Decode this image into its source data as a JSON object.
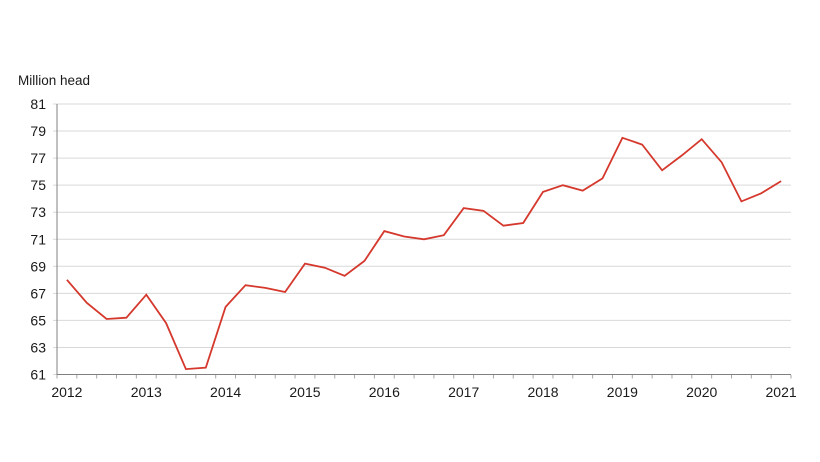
{
  "chart_data": {
    "type": "line",
    "title": "",
    "unit_label": "Million head",
    "xlabel": "",
    "ylabel": "Million head",
    "ylim": [
      61,
      81
    ],
    "y_ticks": [
      61,
      63,
      65,
      67,
      69,
      71,
      73,
      75,
      77,
      79,
      81
    ],
    "x_tick_labels": [
      "2012",
      "2013",
      "2014",
      "2015",
      "2016",
      "2017",
      "2018",
      "2019",
      "2020",
      "2021"
    ],
    "grid": "horizontal",
    "legend": "none",
    "series": [
      {
        "name": "Million head",
        "color": "#d5382c",
        "x": [
          "2012 Q1",
          "2012 Q2",
          "2012 Q3",
          "2012 Q4",
          "2013 Q1",
          "2013 Q2",
          "2013 Q3",
          "2013 Q4",
          "2014 Q1",
          "2014 Q2",
          "2014 Q3",
          "2014 Q4",
          "2015 Q1",
          "2015 Q2",
          "2015 Q3",
          "2015 Q4",
          "2016 Q1",
          "2016 Q2",
          "2016 Q3",
          "2016 Q4",
          "2017 Q1",
          "2017 Q2",
          "2017 Q3",
          "2017 Q4",
          "2018 Q1",
          "2018 Q2",
          "2018 Q3",
          "2018 Q4",
          "2019 Q1",
          "2019 Q2",
          "2019 Q3",
          "2019 Q4",
          "2020 Q1",
          "2020 Q2",
          "2020 Q3",
          "2020 Q4",
          "2021 Q1"
        ],
        "values": [
          68.0,
          66.3,
          65.1,
          65.2,
          66.9,
          64.8,
          61.4,
          61.5,
          66.0,
          67.6,
          67.4,
          67.1,
          69.2,
          68.9,
          68.3,
          69.4,
          71.6,
          71.2,
          71.0,
          71.3,
          73.3,
          73.1,
          72.0,
          72.2,
          74.5,
          75.0,
          74.6,
          75.5,
          78.5,
          78.0,
          76.1,
          77.2,
          78.4,
          76.7,
          73.8,
          74.4,
          75.3
        ]
      }
    ],
    "colors": {
      "line": "#d5382c",
      "grid": "#d9d9d9",
      "axis": "#808080",
      "minor_tick": "#a6a6a6",
      "text": "#1a1a1a",
      "background": "#ffffff"
    }
  }
}
